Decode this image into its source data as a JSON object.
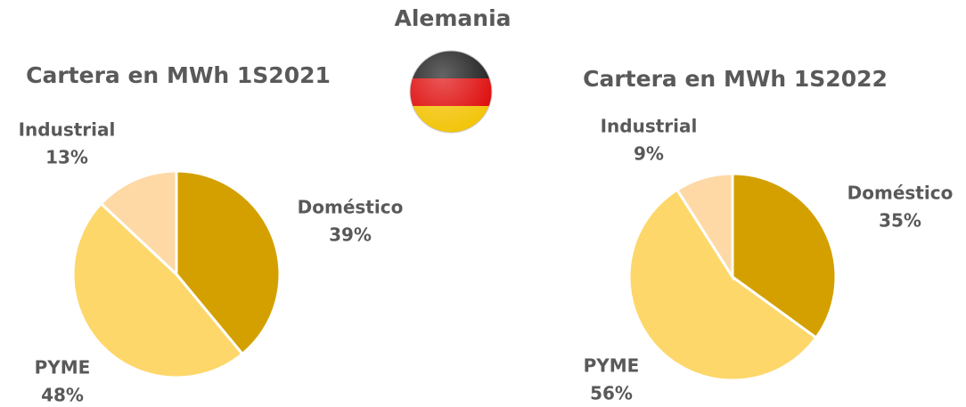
{
  "header": "Alemania",
  "chart_data": [
    {
      "type": "pie",
      "title": "Cartera en MWh 1S2021",
      "categories": [
        "Doméstico",
        "PYME",
        "Industrial"
      ],
      "values": [
        39,
        48,
        13
      ],
      "value_labels": [
        "39%",
        "48%",
        "13%"
      ],
      "colors": [
        "#d4a000",
        "#fdd76a",
        "#fed9a6"
      ]
    },
    {
      "type": "pie",
      "title": "Cartera en MWh 1S2022",
      "categories": [
        "Doméstico",
        "PYME",
        "Industrial"
      ],
      "values": [
        35,
        56,
        9
      ],
      "value_labels": [
        "35%",
        "56%",
        "9%"
      ],
      "colors": [
        "#d4a000",
        "#fdd76a",
        "#fed9a6"
      ]
    }
  ]
}
